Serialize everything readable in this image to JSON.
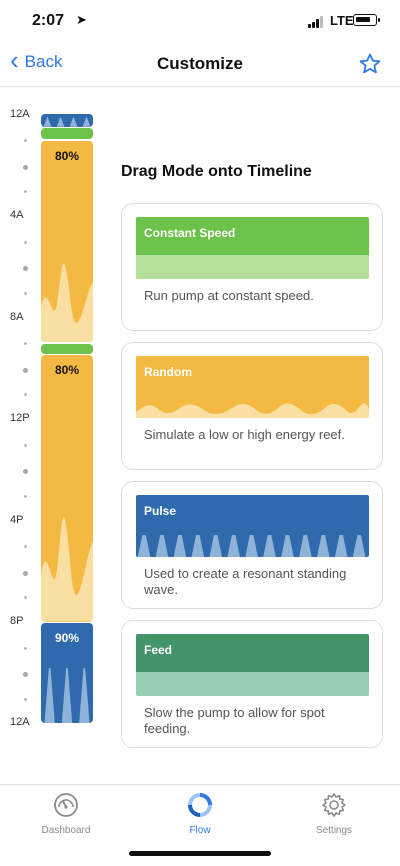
{
  "status_bar": {
    "time": "2:07",
    "network": "LTE",
    "signal_bars": 3,
    "battery_level": 0.85
  },
  "nav": {
    "back_label": "Back",
    "title": "Customize"
  },
  "timeline": {
    "hour_labels": [
      "12A",
      "4A",
      "8A",
      "12P",
      "4P",
      "8P",
      "12A"
    ],
    "segments": [
      {
        "mode": "Pulse",
        "start_hour": 0.0,
        "end_hour": 0.5,
        "label": ""
      },
      {
        "mode": "Constant Speed",
        "start_hour": 0.55,
        "end_hour": 1.0,
        "label": ""
      },
      {
        "mode": "Random",
        "start_hour": 1.05,
        "end_hour": 9.0,
        "label": "80%"
      },
      {
        "mode": "Constant Speed",
        "start_hour": 9.05,
        "end_hour": 9.45,
        "label": ""
      },
      {
        "mode": "Random",
        "start_hour": 9.5,
        "end_hour": 20.0,
        "label": "80%"
      },
      {
        "mode": "Pulse",
        "start_hour": 20.05,
        "end_hour": 24.0,
        "label": "90%"
      }
    ]
  },
  "instruction": "Drag Mode onto Timeline",
  "modes": [
    {
      "name": "Constant Speed",
      "description": "Run pump at constant speed.",
      "color": "#6cc24a",
      "light_color": "#b5e09b"
    },
    {
      "name": "Random",
      "description": "Simulate a low or high energy reef.",
      "color": "#f4b942",
      "light_color": "#f9dfa1"
    },
    {
      "name": "Pulse",
      "description": "Used to create a resonant standing wave.",
      "color": "#2f6aad",
      "light_color": "#8fb2d9"
    },
    {
      "name": "Feed",
      "description": "Slow the pump to allow for spot feeding.",
      "color": "#44946a",
      "light_color": "#97cdb2"
    }
  ],
  "tabs": [
    {
      "label": "Dashboard",
      "icon": "gauge-icon",
      "active": false
    },
    {
      "label": "Flow",
      "icon": "flow-ring-icon",
      "active": true
    },
    {
      "label": "Settings",
      "icon": "gear-icon",
      "active": false
    }
  ],
  "colors": {
    "accent": "#2f7ae5"
  }
}
